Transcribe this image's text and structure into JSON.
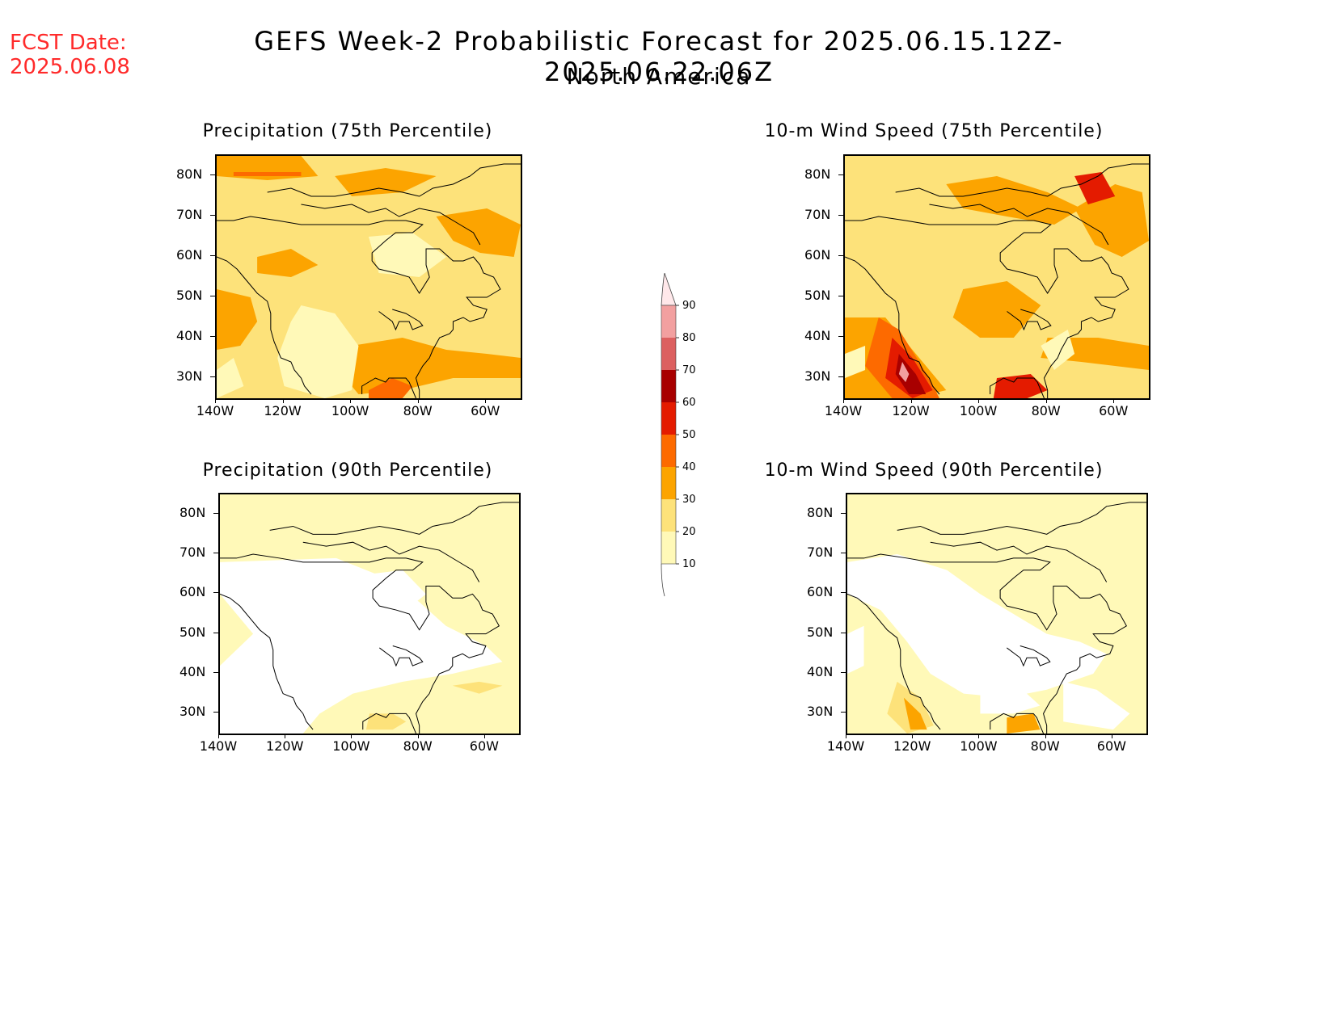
{
  "header": {
    "fcst_date_label": "FCST Date:",
    "fcst_date_value": "2025.06.08",
    "title": "GEFS Week-2 Probabilistic Forecast for 2025.06.15.12Z-2025.06.22.06Z",
    "subtitle": "North America"
  },
  "panels": [
    {
      "id": "precip75",
      "title": "Precipitation (75th Percentile)"
    },
    {
      "id": "wind75",
      "title": "10-m Wind Speed (75th Percentile)"
    },
    {
      "id": "precip90",
      "title": "Precipitation (90th Percentile)"
    },
    {
      "id": "wind90",
      "title": "10-m Wind Speed (90th Percentile)"
    }
  ],
  "axes": {
    "lat_ticks": [
      "80N",
      "70N",
      "60N",
      "50N",
      "40N",
      "30N"
    ],
    "lon_ticks": [
      "140W",
      "120W",
      "100W",
      "80W",
      "60W"
    ]
  },
  "colorbar": {
    "levels": [
      "10",
      "20",
      "30",
      "40",
      "50",
      "60",
      "70",
      "80",
      "90"
    ],
    "colors": [
      "#fff9b8",
      "#fde27a",
      "#fca400",
      "#fd6a00",
      "#e41b00",
      "#a80000",
      "#dc6060",
      "#f2a0a0",
      "#ffe8ea"
    ]
  }
}
